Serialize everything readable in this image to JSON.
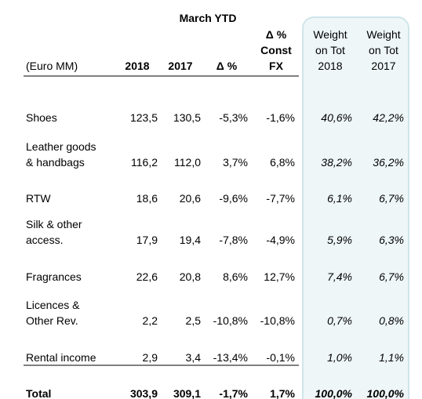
{
  "header": {
    "title": "March YTD"
  },
  "table": {
    "columns": [
      [
        "(Euro MM)"
      ],
      [
        "2018"
      ],
      [
        "2017"
      ],
      [
        "Δ %"
      ],
      [
        "Δ %",
        "Const",
        "FX"
      ],
      [
        "Weight",
        "on Tot",
        "2018"
      ],
      [
        "Weight",
        "on Tot",
        "2017"
      ]
    ],
    "rows": [
      {
        "label": [
          "Shoes"
        ],
        "values": [
          "123,5",
          "130,5",
          "-5,3%",
          "-1,6%",
          "40,6%",
          "42,2%"
        ]
      },
      {
        "label": [
          "Leather goods",
          "& handbags"
        ],
        "values": [
          "116,2",
          "112,0",
          "3,7%",
          "6,8%",
          "38,2%",
          "36,2%"
        ]
      },
      {
        "label": [
          "RTW"
        ],
        "values": [
          "18,6",
          "20,6",
          "-9,6%",
          "-7,7%",
          "6,1%",
          "6,7%"
        ]
      },
      {
        "label": [
          "Silk & other",
          "access."
        ],
        "values": [
          "17,9",
          "19,4",
          "-7,8%",
          "-4,9%",
          "5,9%",
          "6,3%"
        ]
      },
      {
        "label": [
          "Fragrances"
        ],
        "values": [
          "22,6",
          "20,8",
          "8,6%",
          "12,7%",
          "7,4%",
          "6,7%"
        ]
      },
      {
        "label": [
          "Licences &",
          "Other Rev."
        ],
        "values": [
          "2,2",
          "2,5",
          "-10,8%",
          "-10,8%",
          "0,7%",
          "0,8%"
        ]
      },
      {
        "label": [
          "Rental income"
        ],
        "values": [
          "2,9",
          "3,4",
          "-13,4%",
          "-0,1%",
          "1,0%",
          "1,1%"
        ]
      },
      {
        "label": [
          "Total"
        ],
        "values": [
          "303,9",
          "309,1",
          "-1,7%",
          "1,7%",
          "100,0%",
          "100,0%"
        ]
      }
    ]
  }
}
